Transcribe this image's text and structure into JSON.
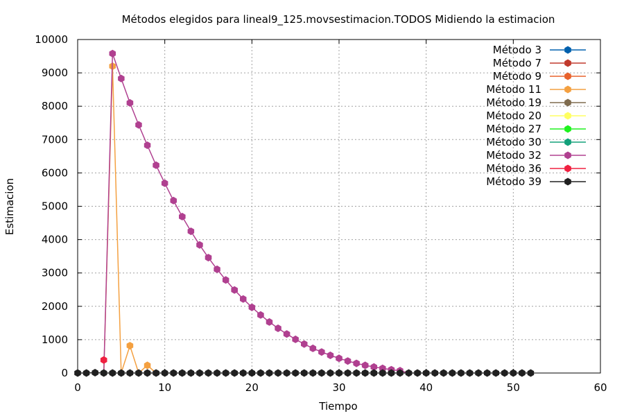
{
  "chart_data": {
    "type": "line",
    "title": "Métodos elegidos para lineal9_125.movsestimacion.TODOS Midiendo la estimacion",
    "xlabel": "Tiempo",
    "ylabel": "Estimacion",
    "xlim": [
      0,
      60
    ],
    "ylim": [
      0,
      10000
    ],
    "xticks": [
      "0",
      "10",
      "20",
      "30",
      "40",
      "50",
      "60"
    ],
    "yticks": [
      "0",
      "1000",
      "2000",
      "3000",
      "4000",
      "5000",
      "6000",
      "7000",
      "8000",
      "9000",
      "10000"
    ],
    "grid": true,
    "legend_position": "top-right",
    "series": [
      {
        "name": "Método 3",
        "color": "#0060ad",
        "points": []
      },
      {
        "name": "Método 7",
        "color": "#c0392b",
        "points": []
      },
      {
        "name": "Método 9",
        "color": "#e8622c",
        "points": []
      },
      {
        "name": "Método 11",
        "color": "#f4a040",
        "points": [
          [
            3,
            0
          ],
          [
            4,
            9200
          ],
          [
            5,
            0
          ],
          [
            6,
            820
          ],
          [
            7,
            0
          ],
          [
            8,
            230
          ],
          [
            9,
            0
          ]
        ]
      },
      {
        "name": "Método 19",
        "color": "#7f6b4e",
        "points": []
      },
      {
        "name": "Método 20",
        "color": "#ffff60",
        "points": []
      },
      {
        "name": "Método 27",
        "color": "#1ef21e",
        "points": []
      },
      {
        "name": "Método 30",
        "color": "#12a07a",
        "points": []
      },
      {
        "name": "Método 32",
        "color": "#b04090",
        "points": [
          [
            3,
            0
          ],
          [
            4,
            9580
          ],
          [
            5,
            8830
          ],
          [
            6,
            8100
          ],
          [
            7,
            7440
          ],
          [
            8,
            6830
          ],
          [
            9,
            6230
          ],
          [
            10,
            5690
          ],
          [
            11,
            5170
          ],
          [
            12,
            4690
          ],
          [
            13,
            4250
          ],
          [
            14,
            3840
          ],
          [
            15,
            3460
          ],
          [
            16,
            3110
          ],
          [
            17,
            2790
          ],
          [
            18,
            2490
          ],
          [
            19,
            2220
          ],
          [
            20,
            1970
          ],
          [
            21,
            1740
          ],
          [
            22,
            1530
          ],
          [
            23,
            1340
          ],
          [
            24,
            1170
          ],
          [
            25,
            1010
          ],
          [
            26,
            870
          ],
          [
            27,
            740
          ],
          [
            28,
            630
          ],
          [
            29,
            530
          ],
          [
            30,
            440
          ],
          [
            31,
            360
          ],
          [
            32,
            290
          ],
          [
            33,
            230
          ],
          [
            34,
            180
          ],
          [
            35,
            140
          ],
          [
            36,
            100
          ],
          [
            37,
            70
          ],
          [
            38,
            0
          ]
        ]
      },
      {
        "name": "Método 36",
        "color": "#f02040",
        "points": [
          [
            3,
            390
          ]
        ]
      },
      {
        "name": "Método 39",
        "color": "#202020",
        "points": [
          [
            0,
            0
          ],
          [
            1,
            0
          ],
          [
            2,
            10
          ],
          [
            3,
            0
          ],
          [
            4,
            0
          ],
          [
            5,
            0
          ],
          [
            6,
            0
          ],
          [
            7,
            0
          ],
          [
            8,
            0
          ],
          [
            9,
            0
          ],
          [
            10,
            0
          ],
          [
            11,
            0
          ],
          [
            12,
            0
          ],
          [
            13,
            0
          ],
          [
            14,
            0
          ],
          [
            15,
            0
          ],
          [
            16,
            0
          ],
          [
            17,
            0
          ],
          [
            18,
            0
          ],
          [
            19,
            0
          ],
          [
            20,
            0
          ],
          [
            21,
            0
          ],
          [
            22,
            0
          ],
          [
            23,
            0
          ],
          [
            24,
            0
          ],
          [
            25,
            0
          ],
          [
            26,
            0
          ],
          [
            27,
            0
          ],
          [
            28,
            0
          ],
          [
            29,
            0
          ],
          [
            30,
            0
          ],
          [
            31,
            0
          ],
          [
            32,
            0
          ],
          [
            33,
            0
          ],
          [
            34,
            0
          ],
          [
            35,
            0
          ],
          [
            36,
            0
          ],
          [
            37,
            0
          ],
          [
            38,
            0
          ],
          [
            39,
            0
          ],
          [
            40,
            0
          ],
          [
            41,
            0
          ],
          [
            42,
            0
          ],
          [
            43,
            0
          ],
          [
            44,
            0
          ],
          [
            45,
            0
          ],
          [
            46,
            0
          ],
          [
            47,
            0
          ],
          [
            48,
            0
          ],
          [
            49,
            0
          ],
          [
            50,
            0
          ],
          [
            51,
            0
          ],
          [
            52,
            0
          ]
        ]
      }
    ]
  }
}
